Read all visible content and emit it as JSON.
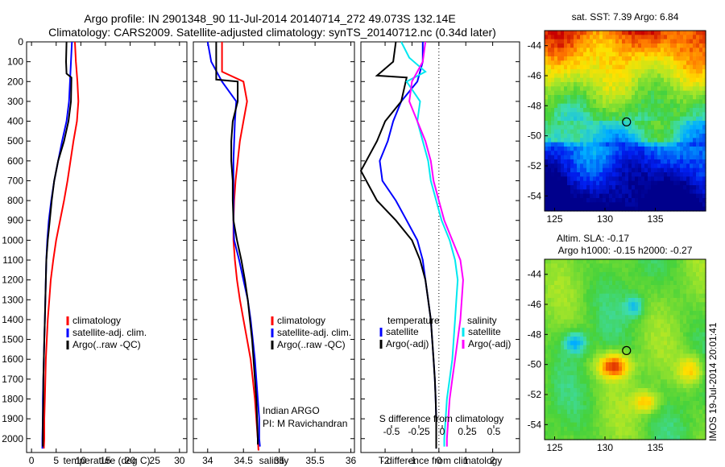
{
  "header": {
    "line1": "Argo profile: IN 2901348_90 11-Jul-2014 20140714_272 49.073S 132.14E",
    "line2": "Climatology: CARS2009. Satellite-adjusted climatology: synTS_20140712.nc (0.34d later)"
  },
  "stamp": "IMOS 19-Jul-2014 20:01:41",
  "colors": {
    "climatology": "#ff0000",
    "satellite": "#0000ff",
    "argo": "#000000",
    "sal_satellite": "#00e8f0",
    "sal_argo": "#ff00ff"
  },
  "chart_data": [
    {
      "type": "line",
      "xlabel": "temperature (deg C)",
      "xticks": [
        0,
        5,
        10,
        15,
        20,
        25,
        30
      ],
      "xlim": [
        -1,
        31.5
      ],
      "yticks": [
        0,
        100,
        200,
        300,
        400,
        500,
        600,
        700,
        800,
        900,
        1000,
        1100,
        1200,
        1300,
        1400,
        1500,
        1600,
        1700,
        1800,
        1900,
        2000
      ],
      "ylim": [
        2070,
        0
      ],
      "legend": [
        "climatology",
        "satellite-adj. clim.",
        "Argo(..raw -QC)"
      ],
      "series": [
        {
          "name": "climatology",
          "color": "#ff0000",
          "points": [
            [
              8.8,
              0
            ],
            [
              9.0,
              100
            ],
            [
              9.3,
              200
            ],
            [
              9.5,
              300
            ],
            [
              9.2,
              400
            ],
            [
              8.5,
              500
            ],
            [
              7.9,
              600
            ],
            [
              7.3,
              700
            ],
            [
              6.6,
              800
            ],
            [
              5.8,
              900
            ],
            [
              5.0,
              1000
            ],
            [
              4.4,
              1100
            ],
            [
              3.9,
              1200
            ],
            [
              3.6,
              1300
            ],
            [
              3.3,
              1400
            ],
            [
              3.1,
              1500
            ],
            [
              2.9,
              1600
            ],
            [
              2.8,
              1700
            ],
            [
              2.7,
              1800
            ],
            [
              2.6,
              1900
            ],
            [
              2.6,
              2000
            ],
            [
              2.5,
              2050
            ]
          ]
        },
        {
          "name": "satellite-adj. clim.",
          "color": "#0000ff",
          "points": [
            [
              8.2,
              0
            ],
            [
              8.0,
              100
            ],
            [
              7.8,
              200
            ],
            [
              7.6,
              300
            ],
            [
              7.1,
              400
            ],
            [
              6.2,
              500
            ],
            [
              5.4,
              600
            ],
            [
              4.6,
              700
            ],
            [
              4.0,
              800
            ],
            [
              3.5,
              900
            ],
            [
              3.2,
              1000
            ],
            [
              3.0,
              1100
            ],
            [
              2.9,
              1200
            ],
            [
              2.8,
              1300
            ],
            [
              2.7,
              1400
            ],
            [
              2.6,
              1500
            ],
            [
              2.5,
              1600
            ],
            [
              2.4,
              1700
            ],
            [
              2.3,
              1800
            ],
            [
              2.3,
              1900
            ],
            [
              2.2,
              2000
            ],
            [
              2.2,
              2050
            ]
          ]
        },
        {
          "name": "Argo(..raw -QC)",
          "color": "#000000",
          "points": [
            [
              7.1,
              0
            ],
            [
              7.0,
              100
            ],
            [
              7.1,
              160
            ],
            [
              8.1,
              180
            ],
            [
              8.0,
              300
            ],
            [
              7.5,
              400
            ],
            [
              6.6,
              500
            ],
            [
              5.4,
              600
            ],
            [
              4.6,
              700
            ],
            [
              4.1,
              800
            ],
            [
              3.7,
              900
            ],
            [
              3.3,
              1000
            ],
            [
              3.0,
              1100
            ],
            [
              2.9,
              1200
            ],
            [
              2.8,
              1300
            ],
            [
              2.7,
              1400
            ],
            [
              2.6,
              1500
            ],
            [
              2.5,
              1600
            ],
            [
              2.4,
              1700
            ],
            [
              2.4,
              1800
            ],
            [
              2.3,
              1900
            ],
            [
              2.3,
              2000
            ],
            [
              2.3,
              2040
            ]
          ]
        }
      ]
    },
    {
      "type": "line",
      "xlabel": "salinity",
      "xticks": [
        34,
        34.5,
        35,
        35.5,
        36
      ],
      "xlim": [
        33.8,
        36.05
      ],
      "ylim": [
        2070,
        0
      ],
      "legend": [
        "climatology",
        "satellite-adj. clim.",
        "Argo(..raw -QC)"
      ],
      "annotation": [
        "Indian ARGO",
        "PI: M Ravichandran"
      ],
      "series": [
        {
          "name": "climatology",
          "color": "#ff0000",
          "points": [
            [
              34.2,
              0
            ],
            [
              34.2,
              100
            ],
            [
              34.2,
              150
            ],
            [
              34.5,
              200
            ],
            [
              34.55,
              300
            ],
            [
              34.5,
              400
            ],
            [
              34.45,
              500
            ],
            [
              34.42,
              600
            ],
            [
              34.39,
              700
            ],
            [
              34.37,
              800
            ],
            [
              34.36,
              900
            ],
            [
              34.36,
              1000
            ],
            [
              34.38,
              1100
            ],
            [
              34.41,
              1200
            ],
            [
              34.45,
              1300
            ],
            [
              34.5,
              1400
            ],
            [
              34.55,
              1500
            ],
            [
              34.6,
              1600
            ],
            [
              34.63,
              1700
            ],
            [
              34.66,
              1800
            ],
            [
              34.68,
              1900
            ],
            [
              34.7,
              2000
            ],
            [
              34.71,
              2060
            ]
          ]
        },
        {
          "name": "satellite-adj. clim.",
          "color": "#0000ff",
          "points": [
            [
              34.0,
              0
            ],
            [
              34.05,
              100
            ],
            [
              34.2,
              200
            ],
            [
              34.4,
              300
            ],
            [
              34.38,
              400
            ],
            [
              34.37,
              500
            ],
            [
              34.36,
              600
            ],
            [
              34.36,
              700
            ],
            [
              34.36,
              800
            ],
            [
              34.36,
              900
            ],
            [
              34.37,
              1000
            ],
            [
              34.44,
              1100
            ],
            [
              34.5,
              1200
            ],
            [
              34.56,
              1300
            ],
            [
              34.6,
              1400
            ],
            [
              34.63,
              1500
            ],
            [
              34.66,
              1600
            ],
            [
              34.68,
              1700
            ],
            [
              34.7,
              1800
            ],
            [
              34.72,
              1900
            ],
            [
              34.72,
              2000
            ],
            [
              34.73,
              2040
            ]
          ]
        },
        {
          "name": "Argo(..raw -QC)",
          "color": "#000000",
          "points": [
            [
              34.12,
              0
            ],
            [
              34.12,
              100
            ],
            [
              34.12,
              190
            ],
            [
              34.42,
              200
            ],
            [
              34.42,
              300
            ],
            [
              34.35,
              400
            ],
            [
              34.33,
              500
            ],
            [
              34.33,
              600
            ],
            [
              34.35,
              700
            ],
            [
              34.35,
              800
            ],
            [
              34.36,
              900
            ],
            [
              34.41,
              1000
            ],
            [
              34.47,
              1100
            ],
            [
              34.52,
              1200
            ],
            [
              34.56,
              1300
            ],
            [
              34.59,
              1400
            ],
            [
              34.62,
              1500
            ],
            [
              34.64,
              1600
            ],
            [
              34.66,
              1700
            ],
            [
              34.68,
              1800
            ],
            [
              34.69,
              1900
            ],
            [
              34.7,
              2000
            ],
            [
              34.7,
              2030
            ]
          ]
        }
      ]
    },
    {
      "type": "line",
      "xlabel": "T difference from climatology",
      "xticks": [
        -2,
        -1,
        0,
        1,
        2
      ],
      "xlim": [
        -2.9,
        3.0
      ],
      "ylim": [
        2070,
        0
      ],
      "s_axis_label": "S difference from climatology",
      "s_ticks": [
        -0.5,
        -0.25,
        0,
        0.25,
        0.5
      ],
      "legend_headers": [
        "temperature",
        "salinity"
      ],
      "legend": [
        {
          "group": "temperature",
          "name": "satellite",
          "color": "#0000ff"
        },
        {
          "group": "temperature",
          "name": "Argo(-adj)",
          "color": "#000000"
        },
        {
          "group": "salinity",
          "name": "satellite",
          "color": "#00e8f0"
        },
        {
          "group": "salinity",
          "name": "Argo(-adj)",
          "color": "#ff00ff"
        }
      ],
      "series": [
        {
          "name": "temperature satellite",
          "color": "#0000ff",
          "points": [
            [
              -0.6,
              0
            ],
            [
              -0.6,
              100
            ],
            [
              -0.8,
              200
            ],
            [
              -1.4,
              300
            ],
            [
              -1.7,
              400
            ],
            [
              -1.9,
              500
            ],
            [
              -2.2,
              600
            ],
            [
              -2.1,
              700
            ],
            [
              -1.6,
              800
            ],
            [
              -1.2,
              900
            ],
            [
              -0.8,
              1000
            ],
            [
              -0.6,
              1100
            ],
            [
              -0.5,
              1200
            ],
            [
              -0.4,
              1300
            ],
            [
              -0.3,
              1400
            ],
            [
              -0.25,
              1500
            ],
            [
              -0.2,
              1600
            ],
            [
              -0.15,
              1700
            ],
            [
              -0.12,
              1800
            ],
            [
              -0.1,
              1900
            ],
            [
              -0.1,
              2000
            ],
            [
              -0.1,
              2050
            ]
          ]
        },
        {
          "name": "temperature Argo(-adj)",
          "color": "#000000",
          "points": [
            [
              -1.6,
              0
            ],
            [
              -1.7,
              100
            ],
            [
              -2.3,
              170
            ],
            [
              -1.2,
              180
            ],
            [
              -1.4,
              300
            ],
            [
              -2.0,
              400
            ],
            [
              -2.3,
              500
            ],
            [
              -2.9,
              650
            ],
            [
              -2.3,
              800
            ],
            [
              -1.6,
              900
            ],
            [
              -1.0,
              1000
            ],
            [
              -0.7,
              1100
            ],
            [
              -0.5,
              1200
            ],
            [
              -0.4,
              1300
            ],
            [
              -0.3,
              1400
            ],
            [
              -0.25,
              1500
            ],
            [
              -0.2,
              1600
            ],
            [
              -0.15,
              1700
            ],
            [
              -0.12,
              1800
            ],
            [
              -0.1,
              1900
            ],
            [
              -0.1,
              2000
            ],
            [
              -0.1,
              2050
            ]
          ]
        },
        {
          "name": "salinity satellite",
          "color": "#00e8f0",
          "points": [
            [
              -1.4,
              0
            ],
            [
              -1.1,
              80
            ],
            [
              -0.5,
              150
            ],
            [
              -1.2,
              200
            ],
            [
              -0.7,
              300
            ],
            [
              -0.8,
              400
            ],
            [
              -0.6,
              500
            ],
            [
              -0.4,
              600
            ],
            [
              -0.3,
              700
            ],
            [
              -0.1,
              800
            ],
            [
              0.1,
              900
            ],
            [
              0.4,
              1000
            ],
            [
              0.6,
              1100
            ],
            [
              0.7,
              1200
            ],
            [
              0.65,
              1300
            ],
            [
              0.6,
              1400
            ],
            [
              0.55,
              1500
            ],
            [
              0.5,
              1600
            ],
            [
              0.4,
              1700
            ],
            [
              0.3,
              1800
            ],
            [
              0.25,
              1900
            ],
            [
              0.2,
              2000
            ],
            [
              0.2,
              2040
            ]
          ]
        },
        {
          "name": "salinity Argo(-adj)",
          "color": "#ff00ff",
          "points": [
            [
              -0.5,
              0
            ],
            [
              -0.6,
              100
            ],
            [
              -1.0,
              200
            ],
            [
              -1.1,
              300
            ],
            [
              -0.8,
              400
            ],
            [
              -0.5,
              500
            ],
            [
              -0.3,
              600
            ],
            [
              -0.2,
              700
            ],
            [
              0.0,
              800
            ],
            [
              0.2,
              900
            ],
            [
              0.5,
              1000
            ],
            [
              0.8,
              1100
            ],
            [
              0.9,
              1200
            ],
            [
              0.85,
              1300
            ],
            [
              0.8,
              1400
            ],
            [
              0.7,
              1500
            ],
            [
              0.6,
              1600
            ],
            [
              0.5,
              1700
            ],
            [
              0.4,
              1800
            ],
            [
              0.35,
              1900
            ],
            [
              0.3,
              2000
            ],
            [
              0.3,
              2040
            ]
          ]
        }
      ]
    },
    {
      "type": "heatmap",
      "title": "sat. SST: 7.39 Argo: 6.84",
      "xticks": [
        125,
        130,
        135
      ],
      "yticks": [
        -44,
        -46,
        -48,
        -50,
        -52,
        -54
      ],
      "xlim": [
        124,
        140
      ],
      "ylim": [
        -55,
        -43
      ],
      "marker": {
        "lon": 132.14,
        "lat": -49.073
      }
    },
    {
      "type": "heatmap",
      "title": "Altim. SLA: -0.17",
      "subtitle": "Argo h1000: -0.15 h2000: -0.27",
      "xticks": [
        125,
        130,
        135
      ],
      "yticks": [
        -44,
        -46,
        -48,
        -50,
        -52,
        -54
      ],
      "xlim": [
        124,
        140
      ],
      "ylim": [
        -55,
        -43
      ],
      "marker": {
        "lon": 132.14,
        "lat": -49.073
      }
    }
  ]
}
